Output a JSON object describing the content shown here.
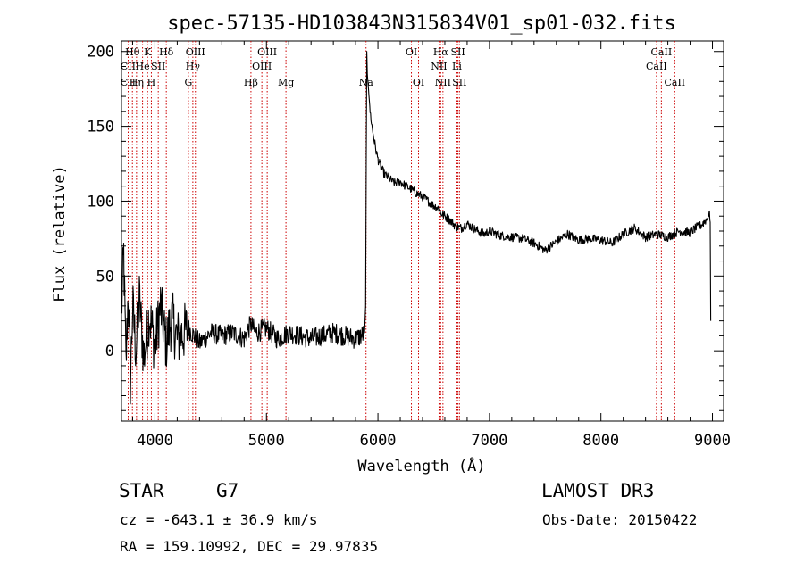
{
  "chart_data": {
    "type": "line",
    "title": "spec-57135-HD103843N315834V01_sp01-032.fits",
    "xlabel": "Wavelength (Å)",
    "ylabel": "Flux (relative)",
    "xlim": [
      3700,
      9100
    ],
    "ylim": [
      -47,
      207
    ],
    "xticks": [
      4000,
      5000,
      6000,
      7000,
      8000,
      9000
    ],
    "yticks": [
      0,
      50,
      100,
      150,
      200
    ],
    "xtick_labels": [
      "4000",
      "5000",
      "6000",
      "7000",
      "8000",
      "9000"
    ],
    "ytick_labels": [
      "0",
      "50",
      "100",
      "150",
      "200"
    ],
    "series": [
      {
        "name": "flux",
        "color": "#000000",
        "x": [
          3700,
          3720,
          3740,
          3760,
          3780,
          3800,
          3830,
          3860,
          3900,
          3950,
          4000,
          4050,
          4100,
          4150,
          4200,
          4300,
          4400,
          4500,
          4600,
          4700,
          4800,
          4860,
          4900,
          5000,
          5100,
          5200,
          5300,
          5400,
          5500,
          5600,
          5700,
          5800,
          5850,
          5880,
          5890,
          5895,
          5900,
          5905,
          5915,
          5930,
          5950,
          5980,
          6000,
          6030,
          6060,
          6100,
          6150,
          6200,
          6250,
          6300,
          6350,
          6400,
          6450,
          6500,
          6550,
          6563,
          6600,
          6650,
          6700,
          6750,
          6800,
          6850,
          6900,
          6950,
          7000,
          7100,
          7200,
          7300,
          7400,
          7500,
          7550,
          7600,
          7700,
          7800,
          7900,
          8000,
          8100,
          8200,
          8300,
          8400,
          8500,
          8550,
          8600,
          8700,
          8800,
          8850,
          8900,
          8950,
          8970,
          8980,
          8985
        ],
        "y": [
          25,
          65,
          -10,
          40,
          -20,
          30,
          0,
          35,
          -5,
          25,
          2,
          30,
          5,
          22,
          8,
          15,
          5,
          12,
          10,
          12,
          8,
          18,
          12,
          15,
          8,
          12,
          10,
          8,
          10,
          12,
          10,
          8,
          10,
          12,
          30,
          130,
          200,
          185,
          175,
          160,
          148,
          135,
          128,
          122,
          118,
          115,
          112,
          113,
          110,
          108,
          105,
          103,
          100,
          97,
          95,
          92,
          90,
          87,
          83,
          82,
          85,
          82,
          80,
          78,
          80,
          77,
          76,
          75,
          72,
          67,
          70,
          73,
          78,
          74,
          75,
          74,
          72,
          78,
          82,
          76,
          78,
          77,
          76,
          80,
          79,
          82,
          84,
          88,
          92,
          88,
          20
        ]
      }
    ],
    "line_labels": [
      {
        "label": "Hθ",
        "x": 3798,
        "row": 1
      },
      {
        "label": "K",
        "x": 3934,
        "row": 1
      },
      {
        "label": "Hδ",
        "x": 4102,
        "row": 1
      },
      {
        "label": "OIII",
        "x": 4363,
        "row": 1
      },
      {
        "label": "OIII",
        "x": 5007,
        "row": 1
      },
      {
        "label": "OI",
        "x": 6300,
        "row": 1
      },
      {
        "label": "Hα",
        "x": 6563,
        "row": 1
      },
      {
        "label": "SII",
        "x": 6717,
        "row": 1
      },
      {
        "label": "CaII",
        "x": 8542,
        "row": 1
      },
      {
        "label": "CII",
        "x": 3760,
        "row": 2
      },
      {
        "label": "He",
        "x": 3889,
        "row": 2
      },
      {
        "label": "SII",
        "x": 4030,
        "row": 2
      },
      {
        "label": "Hγ",
        "x": 4340,
        "row": 2
      },
      {
        "label": "OIII",
        "x": 4959,
        "row": 2
      },
      {
        "label": "NII",
        "x": 6548,
        "row": 2
      },
      {
        "label": "Li",
        "x": 6708,
        "row": 2
      },
      {
        "label": "CaII",
        "x": 8498,
        "row": 2
      },
      {
        "label": "CII",
        "x": 3760,
        "row": 3
      },
      {
        "label": "Hη",
        "x": 3835,
        "row": 3
      },
      {
        "label": "H",
        "x": 3968,
        "row": 3
      },
      {
        "label": "G",
        "x": 4300,
        "row": 3
      },
      {
        "label": "Hβ",
        "x": 4861,
        "row": 3
      },
      {
        "label": "Mg",
        "x": 5175,
        "row": 3
      },
      {
        "label": "Na",
        "x": 5893,
        "row": 3
      },
      {
        "label": "OI",
        "x": 6364,
        "row": 3
      },
      {
        "label": "NII",
        "x": 6583,
        "row": 3
      },
      {
        "label": "SII",
        "x": 6731,
        "row": 3
      },
      {
        "label": "CaII",
        "x": 8662,
        "row": 3
      }
    ],
    "line_marker_color": "#cc0000",
    "line_markers": [
      3760,
      3798,
      3835,
      3889,
      3934,
      3968,
      4030,
      4102,
      4300,
      4340,
      4363,
      4861,
      4959,
      5007,
      5175,
      5893,
      6300,
      6364,
      6548,
      6563,
      6583,
      6708,
      6717,
      6731,
      8498,
      8542,
      8662
    ]
  },
  "info": {
    "object_class": "STAR",
    "subclass": "G7",
    "survey": "LAMOST DR3",
    "redshift_line": "cz = -643.1 ± 36.9 km/s",
    "obs_date_line": "Obs-Date: 20150422",
    "coords_line": "RA = 159.10992, DEC =  29.97835"
  }
}
